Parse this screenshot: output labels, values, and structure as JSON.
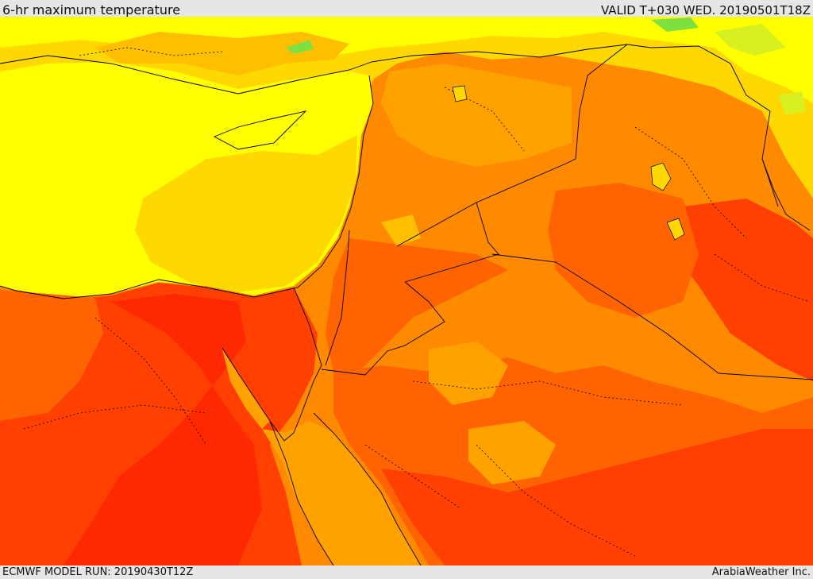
{
  "header": {
    "title": "6-hr maximum temperature",
    "valid": "VALID T+030 WED. 20190501T18Z"
  },
  "footer": {
    "model_run": "ECMWF MODEL RUN: 20190430T12Z",
    "credit": "ArabiaWeather Inc."
  },
  "palette": {
    "green": "#7ee040",
    "yellow_green": "#d8f020",
    "yellow": "#ffff00",
    "gold": "#ffd800",
    "amber": "#ffbe00",
    "orange_light": "#ffa200",
    "orange": "#ff8a00",
    "orange_red": "#ff6400",
    "red_orange": "#ff4000",
    "red": "#ff2800",
    "border_line": "#000000"
  }
}
